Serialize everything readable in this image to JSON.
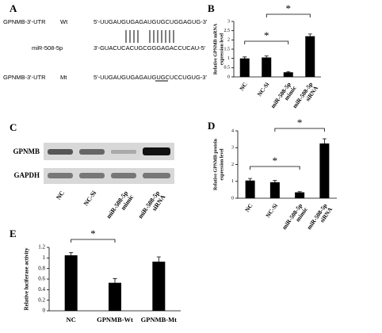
{
  "panel_a": {
    "label": "A",
    "rows": [
      {
        "name": "GPNMB-3'-UTR",
        "tag": "Wt",
        "sequence": "5'-UUGAUGUGAGAUGUGCUGGAGUG-3'"
      },
      {
        "name": "miR-508-5p",
        "sequence": "3'-GUACUCACUGCGGGAGACCUCAU-5'"
      },
      {
        "name": "GPNMB-3'-UTR",
        "tag": "Mt",
        "sequence": "5'-UUGAUGUGAGAUGUGCUCCUGUG-3'"
      }
    ]
  },
  "panel_c": {
    "label": "C",
    "rows": [
      "GPNMB",
      "GAPDH"
    ],
    "lanes": [
      [
        "NC"
      ],
      [
        "NC-Si"
      ],
      [
        "miR-508-5p",
        "mimic"
      ],
      [
        "miR-508-5p",
        "siRNA"
      ]
    ]
  },
  "chart_data": [
    {
      "type": "bar",
      "panel": "B",
      "ylabel": [
        "Relative GPNMB mRNA",
        "expression level"
      ],
      "categories": [
        [
          "NC"
        ],
        [
          "NC-Si"
        ],
        [
          "miR-508-5p",
          "mimic"
        ],
        [
          "miR-508-5p",
          "siRNA"
        ]
      ],
      "values": [
        1.0,
        1.05,
        0.25,
        2.2
      ],
      "errors": [
        0.08,
        0.08,
        0.04,
        0.12
      ],
      "color": "#000000",
      "ylim": [
        0,
        3
      ],
      "yticks": [
        0,
        0.5,
        1,
        1.5,
        2,
        2.5,
        3
      ],
      "annotations": [
        "*",
        "*"
      ]
    },
    {
      "type": "bar",
      "panel": "D",
      "ylabel": [
        "Relative GPNMB protein",
        "expression level"
      ],
      "categories": [
        [
          "NC"
        ],
        [
          "NC-Si"
        ],
        [
          "miR-508-5p",
          "mimic"
        ],
        [
          "miR-508-5p",
          "siRNA"
        ]
      ],
      "values": [
        1.05,
        0.95,
        0.35,
        3.25
      ],
      "errors": [
        0.12,
        0.1,
        0.04,
        0.28
      ],
      "color": "#000000",
      "ylim": [
        0,
        4
      ],
      "yticks": [
        0,
        1,
        2,
        3,
        4
      ],
      "annotations": [
        "*",
        "*"
      ]
    },
    {
      "type": "bar",
      "panel": "E",
      "ylabel": [
        "Relative luciferase activity"
      ],
      "categories": [
        [
          "NC"
        ],
        [
          "GPNMB-Wt"
        ],
        [
          "GPNMB-Mt"
        ]
      ],
      "values": [
        1.05,
        0.53,
        0.93
      ],
      "errors": [
        0.05,
        0.08,
        0.09
      ],
      "color": "#000000",
      "ylim": [
        0,
        1.2
      ],
      "yticks": [
        0,
        0.2,
        0.4,
        0.6,
        0.8,
        1,
        1.2
      ],
      "annotations": [
        "*"
      ]
    }
  ]
}
